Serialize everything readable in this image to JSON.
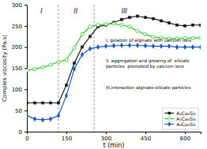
{
  "chart_data": {
    "type": "line",
    "xlabel": "t (min)",
    "ylabel": "Complex viscosity (Pa.s)",
    "xlim": [
      0,
      660
    ],
    "ylim": [
      0,
      300
    ],
    "xticks": [
      0,
      150,
      300,
      450,
      600
    ],
    "yticks": [
      0,
      50,
      100,
      150,
      200,
      250,
      300
    ],
    "x": [
      0,
      30,
      60,
      90,
      120,
      150,
      180,
      210,
      240,
      270,
      300,
      330,
      360,
      390,
      420,
      450,
      480,
      510,
      540,
      570,
      600,
      630,
      660
    ],
    "series": [
      {
        "name": "A₂Ca₆Si₆",
        "color": "#1a1a1a",
        "marker": "square",
        "values": [
          68,
          68,
          68,
          68,
          68,
          110,
          162,
          200,
          225,
          248,
          252,
          258,
          265,
          270,
          273,
          270,
          267,
          262,
          257,
          252,
          250,
          252,
          252
        ]
      },
      {
        "name": "A₁Ca₆Si₆",
        "color": "#22cc22",
        "marker": "open-circle",
        "values": [
          145,
          148,
          152,
          158,
          165,
          170,
          198,
          230,
          248,
          252,
          254,
          255,
          252,
          248,
          238,
          230,
          224,
          222,
          220,
          220,
          221,
          221,
          222
        ]
      },
      {
        "name": "A₀Ca₆Si₆",
        "color": "#1155cc",
        "marker": "diamond",
        "values": [
          38,
          30,
          28,
          30,
          38,
          85,
          148,
          182,
          196,
          200,
          202,
          203,
          204,
          204,
          204,
          203,
          202,
          202,
          202,
          200,
          200,
          200,
          200
        ]
      }
    ],
    "vlines": [
      120,
      255
    ],
    "annotations": [
      {
        "text": "I",
        "x": 55,
        "y": 290
      },
      {
        "text": "II",
        "x": 185,
        "y": 290
      },
      {
        "text": "III",
        "x": 370,
        "y": 290
      },
      {
        "text": "I. gelation of alginate with calcium ions"
      },
      {
        "text": "II. aggregation and growing of  silicate\nparticles  promoted by calcium ions"
      },
      {
        "text": "III.interaction alginate-silicate particles"
      }
    ],
    "legend": "lower right"
  }
}
